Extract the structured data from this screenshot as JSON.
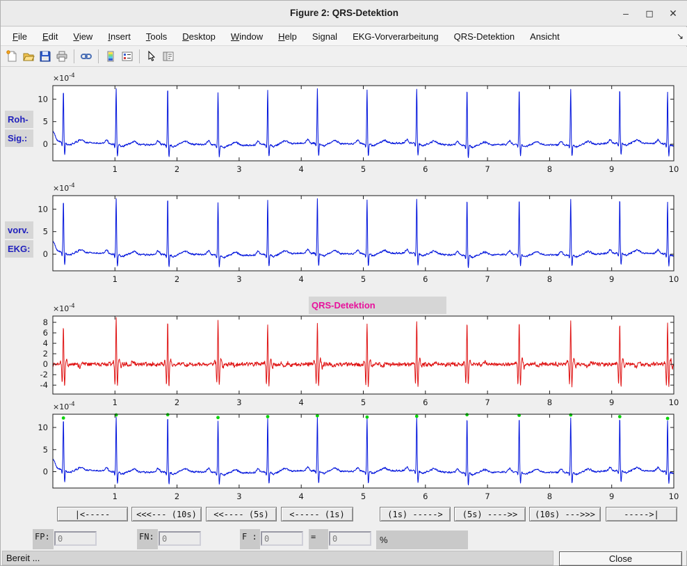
{
  "window": {
    "title": "Figure 2: QRS-Detektion",
    "controls": {
      "minimize": "–",
      "maximize": "◻",
      "close": "✕"
    }
  },
  "menu": {
    "items": [
      {
        "label": "File",
        "accel": true
      },
      {
        "label": "Edit",
        "accel": true
      },
      {
        "label": "View",
        "accel": true
      },
      {
        "label": "Insert",
        "accel": true
      },
      {
        "label": "Tools",
        "accel": true
      },
      {
        "label": "Desktop",
        "accel": true
      },
      {
        "label": "Window",
        "accel": true
      },
      {
        "label": "Help",
        "accel": true
      },
      {
        "label": "Signal",
        "accel": false
      },
      {
        "label": "EKG-Vorverarbeitung",
        "accel": false
      },
      {
        "label": "QRS-Detektion",
        "accel": false
      },
      {
        "label": "Ansicht",
        "accel": false
      }
    ],
    "overflow_arrow": "↘"
  },
  "toolbar": {
    "items": [
      "new-figure",
      "open-file",
      "save-figure",
      "print-figure",
      "|",
      "link-plot",
      "|",
      "insert-colorbar",
      "insert-legend",
      "|",
      "edit-plot",
      "plot-browser"
    ]
  },
  "figure": {
    "side_labels": [
      "Roh-",
      "Sig.:",
      "vorv.",
      "EKG:"
    ],
    "plot3_title": "QRS-Detektion"
  },
  "chart_data": {
    "type": "line",
    "xlim": [
      0,
      10
    ],
    "xticks": [
      1,
      2,
      3,
      4,
      5,
      6,
      7,
      8,
      9,
      10
    ],
    "exponent_label": {
      "mantissa": "×10",
      "exponent": "-4"
    },
    "beat_times": [
      0.17,
      1.02,
      1.85,
      2.66,
      3.46,
      4.26,
      5.06,
      5.86,
      6.67,
      7.51,
      8.34,
      9.13,
      9.9
    ],
    "plots": [
      {
        "name": "roh-signal",
        "kind": "ecg",
        "color": "#0013dc",
        "yticks": [
          0,
          5,
          10
        ],
        "ylim": [
          -3.7,
          13.0
        ],
        "peak_amps": [
          11.7,
          12.4,
          12.5,
          11.8,
          12.0,
          12.2,
          11.9,
          12.1,
          12.6,
          12.3,
          12.4,
          12.0,
          11.6
        ]
      },
      {
        "name": "vorverarbeitetes-ekg",
        "kind": "ecg",
        "color": "#0013dc",
        "yticks": [
          0,
          5,
          10
        ],
        "ylim": [
          -3.7,
          13.0
        ],
        "peak_amps": [
          11.7,
          12.4,
          12.5,
          11.8,
          12.0,
          12.2,
          11.9,
          12.1,
          12.6,
          12.3,
          12.4,
          12.0,
          11.6
        ]
      },
      {
        "name": "qrs-filtersignal",
        "kind": "filtered",
        "color": "#df1212",
        "yticks": [
          -4,
          -2,
          0,
          2,
          4,
          6,
          8
        ],
        "ylim": [
          -5.7,
          9.2
        ],
        "peak_amps": [
          7.3,
          9.2,
          8.2,
          8.1,
          7.4,
          8.0,
          7.7,
          8.3,
          8.1,
          7.9,
          8.2,
          7.5,
          7.6
        ]
      },
      {
        "name": "qrs-detektion-ergebnis",
        "kind": "ecg",
        "color": "#0013dc",
        "yticks": [
          0,
          5,
          10
        ],
        "ylim": [
          -3.7,
          13.0
        ],
        "markers": true,
        "marker_color": "#0bd30b",
        "peak_amps": [
          11.7,
          12.4,
          12.5,
          11.8,
          12.0,
          12.2,
          11.9,
          12.1,
          12.6,
          12.3,
          12.4,
          12.0,
          11.6
        ]
      }
    ]
  },
  "nav": {
    "buttons": [
      {
        "label": "|<-----"
      },
      {
        "label": "<<<--- (10s)"
      },
      {
        "label": "<<---- (5s)"
      },
      {
        "label": "<----- (1s)"
      },
      {
        "label": "(1s) ----->"
      },
      {
        "label": "(5s) ---->>"
      },
      {
        "label": "(10s) --->>>"
      },
      {
        "label": "----->|"
      }
    ]
  },
  "stats": {
    "fields": [
      {
        "label": "FP:",
        "value": "0"
      },
      {
        "label": "FN:",
        "value": "0"
      },
      {
        "label": "F :",
        "value": "0"
      },
      {
        "label": "=",
        "value": "0"
      }
    ],
    "percent_label": "%"
  },
  "status": {
    "text": "Bereit ...",
    "close_label": "Close"
  }
}
